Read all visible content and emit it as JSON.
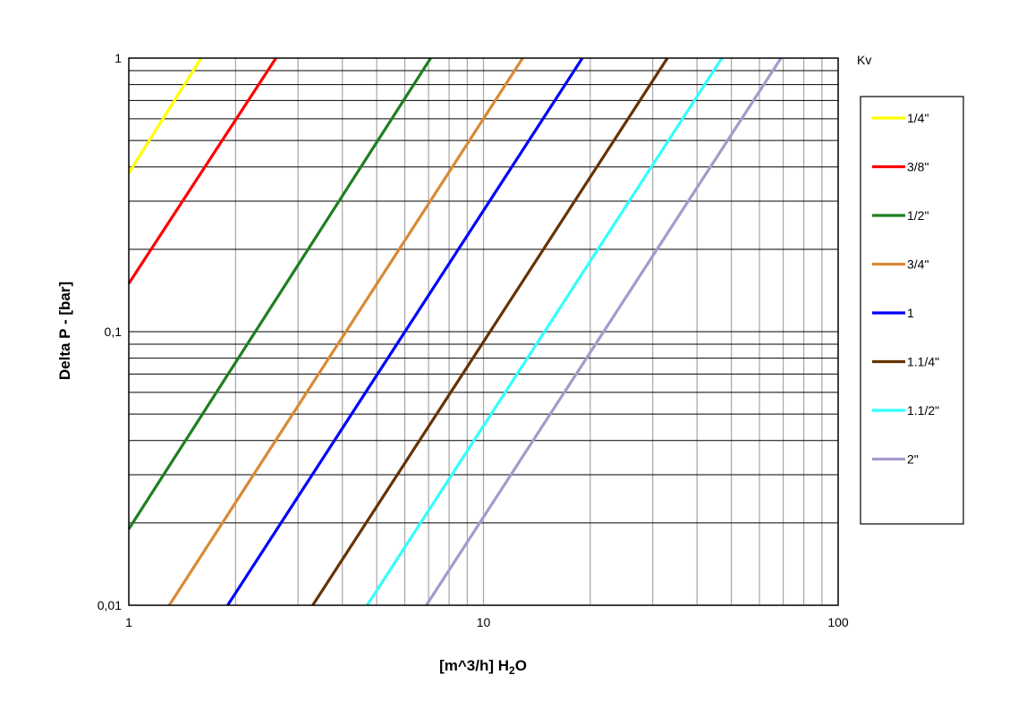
{
  "chart_data": {
    "type": "line",
    "title": "",
    "xlabel": "[m^3/h] H",
    "xlabel_sub": "2",
    "xlabel_tail": "O",
    "ylabel": "Delta P - [bar]",
    "legend_title": "Kv",
    "xscale": "log",
    "yscale": "log",
    "xlim": [
      1,
      100
    ],
    "ylim": [
      0.01,
      1
    ],
    "grid": true,
    "legend_position": "right",
    "x_ticks": [
      {
        "value": 1,
        "label": "1"
      },
      {
        "value": 10,
        "label": "10"
      },
      {
        "value": 100,
        "label": "100"
      }
    ],
    "y_ticks": [
      {
        "value": 0.01,
        "label": "0,01"
      },
      {
        "value": 0.1,
        "label": "0,1"
      },
      {
        "value": 1,
        "label": "1"
      }
    ],
    "series": [
      {
        "name": "1/4\"",
        "color": "#ffff00",
        "x": [
          1.0,
          1.6
        ],
        "y": [
          0.38,
          1.0
        ]
      },
      {
        "name": "3/8\"",
        "color": "#ff0000",
        "x": [
          1.0,
          2.6
        ],
        "y": [
          0.15,
          1.0
        ]
      },
      {
        "name": "1/2\"",
        "color": "#1f7f1f",
        "x": [
          1.0,
          7.1
        ],
        "y": [
          0.019,
          1.0
        ]
      },
      {
        "name": "3/4\"",
        "color": "#d88a35",
        "x": [
          1.3,
          12.9
        ],
        "y": [
          0.01,
          1.0
        ]
      },
      {
        "name": "1",
        "color": "#0000ff",
        "x": [
          1.9,
          19.0
        ],
        "y": [
          0.01,
          1.0
        ]
      },
      {
        "name": "1.1/4\"",
        "color": "#663300",
        "x": [
          3.3,
          33.0
        ],
        "y": [
          0.01,
          1.0
        ]
      },
      {
        "name": "1.1/2\"",
        "color": "#33ffff",
        "x": [
          4.7,
          47.0
        ],
        "y": [
          0.01,
          1.0
        ]
      },
      {
        "name": "2\"",
        "color": "#a899cc",
        "x": [
          6.9,
          69.0
        ],
        "y": [
          0.01,
          1.0
        ]
      }
    ]
  }
}
